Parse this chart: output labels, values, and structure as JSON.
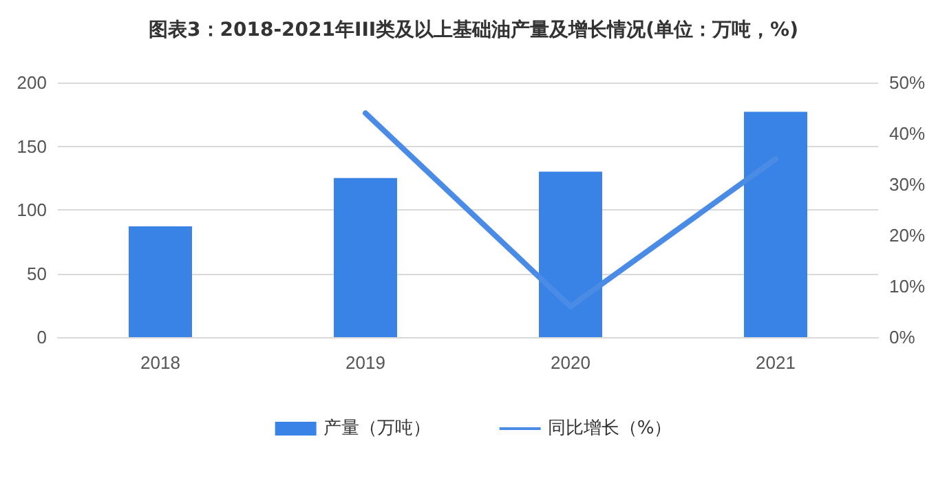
{
  "chart_data": {
    "type": "bar",
    "title": "图表3：2018-2021年III类及以上基础油产量及增长情况(单位：万吨，%)",
    "categories": [
      "2018",
      "2019",
      "2020",
      "2021"
    ],
    "series": [
      {
        "name": "产量（万吨）",
        "color": "#3883e5",
        "values": [
          87,
          125,
          130,
          177
        ]
      },
      {
        "name": "同比增长（%）",
        "type": "line",
        "axis": "y2",
        "color": "#4a8be6",
        "values": [
          null,
          44,
          6,
          35
        ]
      }
    ],
    "ylim": [
      0,
      200
    ],
    "yticks": [
      0,
      50,
      100,
      150,
      200
    ],
    "y2lim": [
      0,
      50
    ],
    "y2ticks": [
      {
        "value": 0,
        "label": "0%"
      },
      {
        "value": 10,
        "label": "10%"
      },
      {
        "value": 20,
        "label": "20%"
      },
      {
        "value": 30,
        "label": "30%"
      },
      {
        "value": 40,
        "label": "40%"
      },
      {
        "value": 50,
        "label": "50%"
      }
    ],
    "grid": "y",
    "legend": "bottom",
    "marker": "none",
    "line_style": "solid"
  }
}
